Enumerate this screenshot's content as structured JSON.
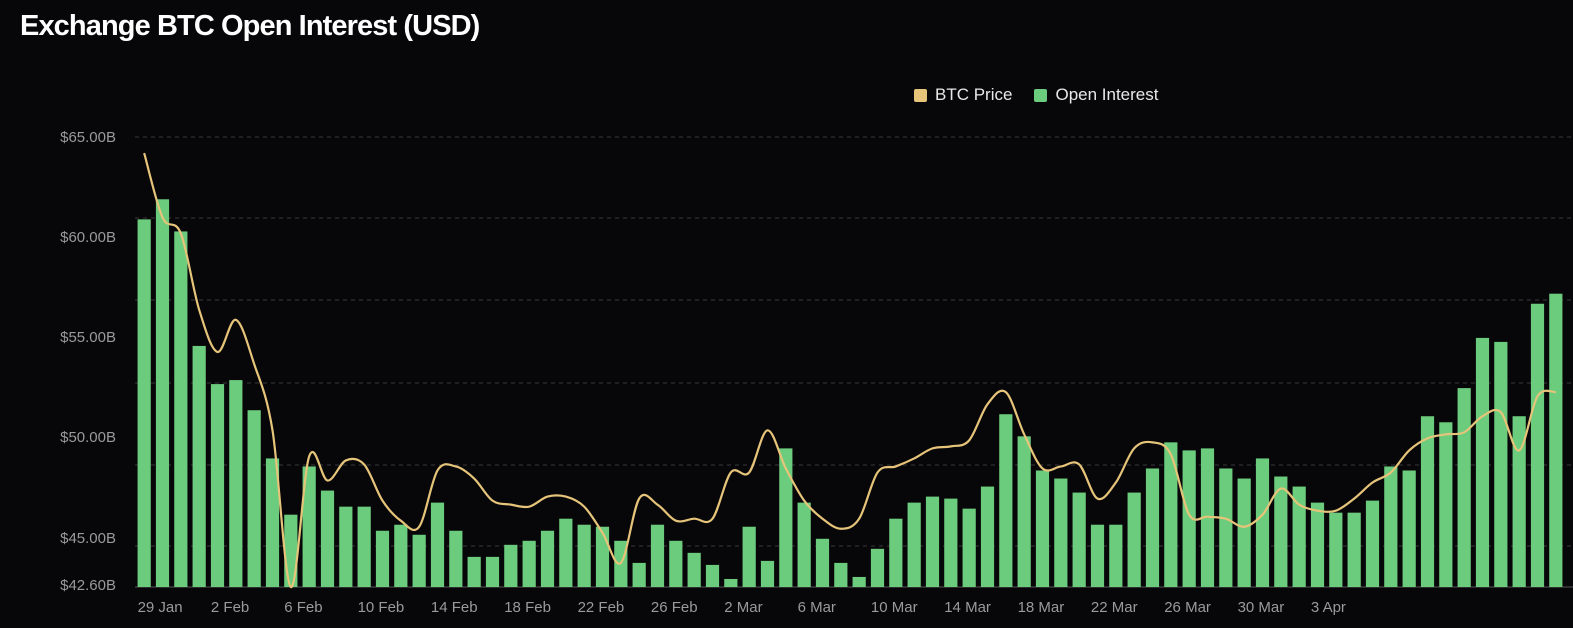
{
  "chart_data": {
    "type": "bar",
    "title": "Exchange BTC Open Interest (USD)",
    "legend_position": "top-right",
    "grid": true,
    "ylim": [
      42.6,
      65.5
    ],
    "y_ticks": [
      "$65.00B",
      "$60.00B",
      "$55.00B",
      "$50.00B",
      "$45.00B",
      "$42.60B"
    ],
    "y_tick_values": [
      65,
      60,
      55,
      50,
      45,
      42.6
    ],
    "x_ticks": [
      "29 Jan",
      "2 Feb",
      "6 Feb",
      "10 Feb",
      "14 Feb",
      "18 Feb",
      "22 Feb",
      "26 Feb",
      "2 Mar",
      "6 Mar",
      "10 Mar",
      "14 Mar",
      "18 Mar",
      "22 Mar",
      "26 Mar",
      "30 Mar",
      "3 Apr"
    ],
    "x_tick_index": [
      0,
      4,
      8,
      12,
      16,
      20,
      24,
      28,
      32,
      36,
      40,
      44,
      48,
      52,
      56,
      60,
      64
    ],
    "colors": {
      "open_interest": "#6ccc7e",
      "btc_price": "#e6c47a",
      "background": "#070709",
      "grid": "#3a3a3a"
    },
    "series": [
      {
        "name": "Open Interest",
        "type": "bar",
        "values": [
          60.9,
          61.9,
          60.3,
          54.6,
          52.7,
          52.9,
          51.4,
          49.0,
          46.2,
          48.6,
          47.4,
          46.6,
          46.6,
          45.4,
          45.7,
          45.2,
          46.8,
          45.4,
          44.1,
          44.1,
          44.7,
          44.9,
          45.4,
          46.0,
          45.7,
          45.6,
          44.9,
          43.8,
          45.7,
          44.9,
          44.3,
          43.7,
          43.0,
          45.6,
          43.9,
          49.5,
          46.8,
          45.0,
          43.8,
          43.1,
          44.5,
          46.0,
          46.8,
          47.1,
          47.0,
          46.5,
          47.6,
          51.2,
          50.1,
          48.4,
          48.0,
          47.3,
          45.7,
          45.7,
          47.3,
          48.5,
          49.8,
          49.4,
          49.5,
          48.5,
          48.0,
          49.0,
          48.1,
          47.6,
          46.8,
          46.3,
          46.3,
          46.9,
          48.6,
          48.4,
          51.1,
          50.8,
          52.5,
          55.0,
          54.8,
          51.1,
          56.7,
          57.2
        ]
      },
      {
        "name": "BTC Price",
        "type": "line",
        "values": [
          64.2,
          61.0,
          60.2,
          56.4,
          54.3,
          55.9,
          53.7,
          50.4,
          42.6,
          49.1,
          47.9,
          48.9,
          48.7,
          46.9,
          45.9,
          45.6,
          48.4,
          48.6,
          48.0,
          46.9,
          46.7,
          46.6,
          47.1,
          47.1,
          46.6,
          45.3,
          43.8,
          47.0,
          46.7,
          45.9,
          46.0,
          46.0,
          48.3,
          48.3,
          50.4,
          48.5,
          46.9,
          46.0,
          45.5,
          46.0,
          48.3,
          48.6,
          49.0,
          49.5,
          49.6,
          49.9,
          51.7,
          52.3,
          50.2,
          48.5,
          48.6,
          48.7,
          47.0,
          47.8,
          49.5,
          49.8,
          49.2,
          46.2,
          46.1,
          46.0,
          45.6,
          46.2,
          47.5,
          46.7,
          46.4,
          46.4,
          47.0,
          47.8,
          48.3,
          49.4,
          50.0,
          50.2,
          50.3,
          51.1,
          51.3,
          49.4,
          52.1,
          52.3
        ]
      }
    ]
  }
}
